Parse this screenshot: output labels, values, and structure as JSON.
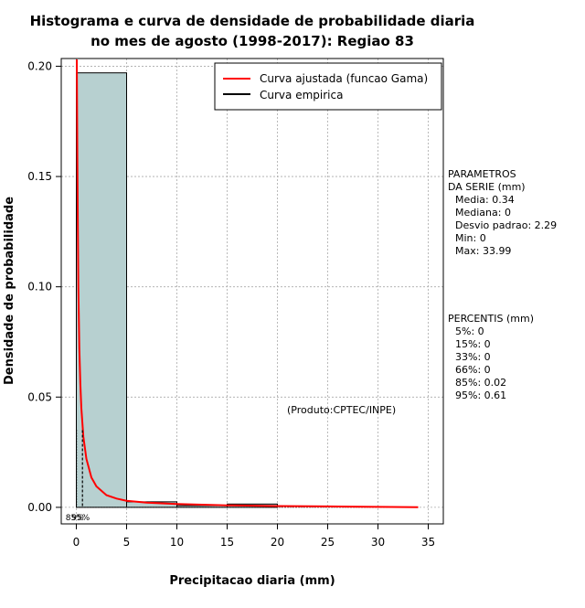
{
  "chart_data": {
    "type": "bar",
    "title": "Histograma e curva de densidade de probabilidade diaria",
    "subtitle": "no mes de agosto (1998-2017): Regiao 83",
    "xlabel": "Precipitacao diaria (mm)",
    "ylabel": "Densidade de probabilidade",
    "xlim": [
      -1.5,
      36.5
    ],
    "ylim": [
      -0.0075,
      0.2035
    ],
    "x_ticks": [
      "0",
      "5",
      "10",
      "15",
      "20",
      "25",
      "30",
      "35"
    ],
    "y_ticks": [
      "0.00",
      "0.05",
      "0.10",
      "0.15",
      "0.20"
    ],
    "grid": true,
    "histogram": [
      {
        "x0": 0,
        "x1": 5,
        "density": 0.197
      },
      {
        "x0": 5,
        "x1": 10,
        "density": 0.0025
      },
      {
        "x0": 10,
        "x1": 15,
        "density": 0.0008
      },
      {
        "x0": 15,
        "x1": 20,
        "density": 0.0015
      },
      {
        "x0": 20,
        "x1": 25,
        "density": 0.0
      },
      {
        "x0": 25,
        "x1": 30,
        "density": 0.0
      },
      {
        "x0": 30,
        "x1": 35,
        "density": 0.0
      }
    ],
    "series": [
      {
        "name": "Curva ajustada (funcao Gama)",
        "color": "#ff0000",
        "x": [
          0.05,
          0.1,
          0.15,
          0.2,
          0.3,
          0.4,
          0.5,
          0.7,
          1,
          1.5,
          2,
          3,
          4,
          5,
          7,
          10,
          15,
          20,
          25,
          30,
          34
        ],
        "y": [
          0.205,
          0.16,
          0.125,
          0.1,
          0.072,
          0.056,
          0.045,
          0.032,
          0.022,
          0.0135,
          0.0095,
          0.0055,
          0.004,
          0.003,
          0.0021,
          0.0015,
          0.0009,
          0.0006,
          0.0004,
          0.0002,
          0.0001
        ]
      },
      {
        "name": "Curva empirica",
        "color": "#000000",
        "x": [],
        "y": []
      }
    ],
    "legend_position": "top-right",
    "annotation": "(Produto:CPTEC/INPE)",
    "percentile_marks": [
      {
        "label": "95%",
        "x": 0.61,
        "color": "#000000",
        "dash": true
      },
      {
        "label": "85%",
        "x": 0.02,
        "color": "#000000",
        "dash": false
      }
    ],
    "parametros": {
      "header1": "PARAMETROS",
      "header2": "DA SERIE (mm)",
      "lines": [
        "Media: 0.34",
        "Mediana: 0",
        "Desvio padrao: 2.29",
        "Min: 0",
        "Max: 33.99"
      ]
    },
    "percentis": {
      "header": "PERCENTIS (mm)",
      "lines": [
        "5%: 0",
        "15%: 0",
        "33%: 0",
        "66%: 0",
        "85%: 0.02",
        "95%: 0.61"
      ]
    },
    "colors": {
      "bar_fill": "#b7d0d0",
      "grid": "#aaaaaa",
      "fit_curve": "#ff0000"
    }
  }
}
